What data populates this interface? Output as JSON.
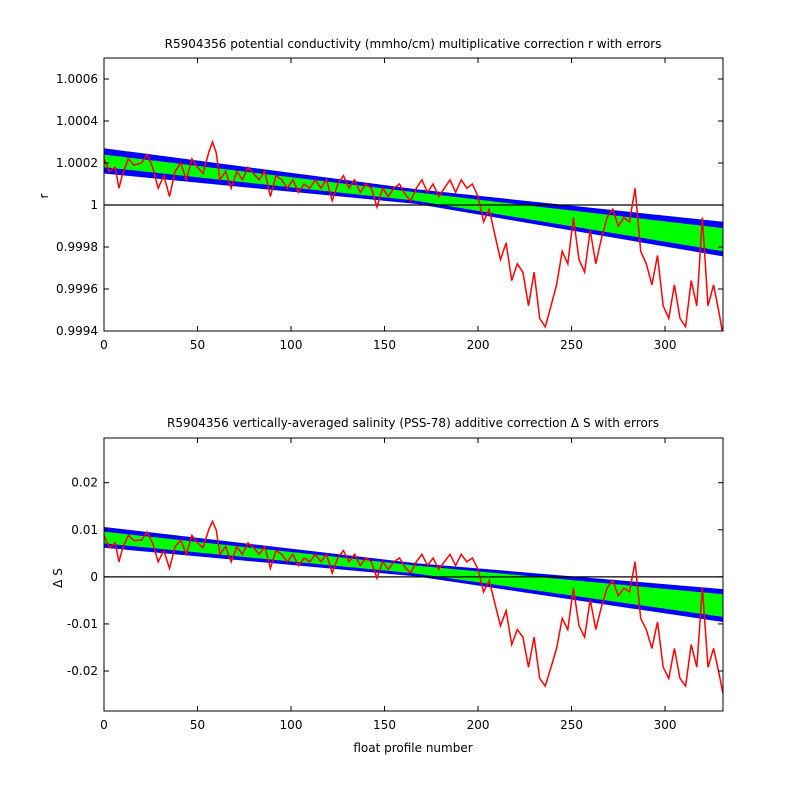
{
  "chart_data": [
    {
      "type": "line",
      "title": "R5904356 potential conductivity (mmho/cm) multiplicative correction r with errors",
      "xlabel": "",
      "ylabel": "r",
      "xlim": [
        0,
        331
      ],
      "ylim": [
        0.9994,
        1.0007
      ],
      "xticks": [
        0,
        50,
        100,
        150,
        200,
        250,
        300
      ],
      "xtick_labels": [
        "0",
        "50",
        "100",
        "150",
        "200",
        "250",
        "300"
      ],
      "yticks": [
        0.9994,
        0.9996,
        0.9998,
        1,
        1.0002,
        1.0004,
        1.0006
      ],
      "ytick_labels": [
        "0.9994",
        "0.9996",
        "0.9998",
        "1",
        "1.0002",
        "1.0004",
        "1.0006"
      ],
      "reference_line": 1,
      "grid": false,
      "colors": {
        "outer_band": "#0000ff",
        "inner_band": "#00ff00",
        "profile_line": "#ff0000",
        "reference_line": "#000000"
      },
      "series": [
        {
          "role": "outer_error_band",
          "x": [
            0,
            167,
            331
          ],
          "upper": [
            1.00027,
            1.000075,
            0.99992
          ],
          "lower": [
            1.00015,
            1.000005,
            0.999755
          ]
        },
        {
          "role": "inner_error_band",
          "x": [
            0,
            167,
            331
          ],
          "upper": [
            1.00024,
            1.00006,
            0.99989
          ],
          "lower": [
            1.00018,
            1.00002,
            0.99978
          ]
        },
        {
          "role": "profile_correction",
          "x": [
            0,
            3,
            6,
            8,
            10,
            13,
            16,
            20,
            23,
            26,
            29,
            32,
            35,
            38,
            41,
            44,
            47,
            50,
            53,
            56,
            58,
            60,
            62,
            65,
            68,
            71,
            74,
            77,
            80,
            83,
            86,
            89,
            92,
            95,
            98,
            101,
            104,
            107,
            110,
            113,
            116,
            119,
            122,
            125,
            128,
            131,
            134,
            137,
            140,
            143,
            146,
            149,
            152,
            155,
            158,
            161,
            164,
            167,
            170,
            173,
            176,
            179,
            182,
            185,
            188,
            191,
            194,
            197,
            200,
            203,
            206,
            209,
            212,
            215,
            218,
            221,
            224,
            227,
            230,
            233,
            236,
            239,
            242,
            245,
            248,
            251,
            254,
            257,
            260,
            263,
            266,
            269,
            272,
            275,
            278,
            281,
            284,
            287,
            290,
            293,
            296,
            299,
            302,
            305,
            308,
            311,
            314,
            317,
            320,
            323,
            326,
            329,
            331
          ],
          "y": [
            1.00022,
            1.00016,
            1.00018,
            1.00008,
            1.00015,
            1.00022,
            1.00019,
            1.0002,
            1.00024,
            1.00018,
            1.00008,
            1.00014,
            1.00004,
            1.00016,
            1.0002,
            1.00012,
            1.00022,
            1.00018,
            1.00015,
            1.00025,
            1.0003,
            1.00025,
            1.00012,
            1.00016,
            1.00008,
            1.00016,
            1.00012,
            1.00018,
            1.00015,
            1.00012,
            1.00016,
            1.00004,
            1.00014,
            1.00012,
            1.00008,
            1.00012,
            1.00006,
            1.0001,
            1.00008,
            1.00012,
            1.00008,
            1.00012,
            1.00002,
            1.0001,
            1.00014,
            1.00008,
            1.00012,
            1.00006,
            1.0001,
            1.00008,
            0.99999,
            1.00008,
            1.00004,
            1.00008,
            1.0001,
            1.00005,
            1.00002,
            1.00008,
            1.00012,
            1.00006,
            1.0001,
            1.00004,
            1.00008,
            1.00012,
            1.00006,
            1.00012,
            1.00008,
            1.0001,
            1.00004,
            0.99992,
            0.99998,
            0.99986,
            0.99974,
            0.99982,
            0.99964,
            0.99972,
            0.99968,
            0.99952,
            0.99968,
            0.99946,
            0.99942,
            0.99952,
            0.99962,
            0.99978,
            0.99972,
            0.99994,
            0.99974,
            0.99968,
            0.99988,
            0.99972,
            0.99984,
            0.99994,
            0.99998,
            0.9999,
            0.99994,
            0.99992,
            1.00008,
            0.99978,
            0.99972,
            0.99962,
            0.99976,
            0.99952,
            0.99946,
            0.99962,
            0.99946,
            0.99942,
            0.99964,
            0.99952,
            0.99994,
            0.99952,
            0.99962,
            0.99948,
            0.99938
          ]
        }
      ]
    },
    {
      "type": "line",
      "title": "R5904356 vertically-averaged salinity (PSS-78) additive correction Δ S with errors",
      "xlabel": "float profile number",
      "ylabel": "Δ S",
      "xlim": [
        0,
        331
      ],
      "ylim": [
        -0.0285,
        0.0295
      ],
      "xticks": [
        0,
        50,
        100,
        150,
        200,
        250,
        300
      ],
      "xtick_labels": [
        "0",
        "50",
        "100",
        "150",
        "200",
        "250",
        "300"
      ],
      "yticks": [
        -0.02,
        -0.01,
        0,
        0.01,
        0.02
      ],
      "ytick_labels": [
        "-0.02",
        "-0.01",
        "0",
        "0.01",
        "0.02"
      ],
      "reference_line": 0,
      "grid": false,
      "colors": {
        "outer_band": "#0000ff",
        "inner_band": "#00ff00",
        "profile_line": "#ff0000",
        "reference_line": "#000000"
      },
      "series": [
        {
          "role": "outer_error_band",
          "x": [
            0,
            167,
            331
          ],
          "upper": [
            0.0106,
            0.0029,
            -0.0026
          ],
          "lower": [
            0.0062,
            0.0001,
            -0.0096
          ]
        },
        {
          "role": "inner_error_band",
          "x": [
            0,
            167,
            331
          ],
          "upper": [
            0.0096,
            0.0024,
            -0.0037
          ],
          "lower": [
            0.0071,
            0.0007,
            -0.0085
          ]
        },
        {
          "role": "profile_correction",
          "x": [
            0,
            3,
            6,
            8,
            10,
            13,
            16,
            20,
            23,
            26,
            29,
            32,
            35,
            38,
            41,
            44,
            47,
            50,
            53,
            56,
            58,
            60,
            62,
            65,
            68,
            71,
            74,
            77,
            80,
            83,
            86,
            89,
            92,
            95,
            98,
            101,
            104,
            107,
            110,
            113,
            116,
            119,
            122,
            125,
            128,
            131,
            134,
            137,
            140,
            143,
            146,
            149,
            152,
            155,
            158,
            161,
            164,
            167,
            170,
            173,
            176,
            179,
            182,
            185,
            188,
            191,
            194,
            197,
            200,
            203,
            206,
            209,
            212,
            215,
            218,
            221,
            224,
            227,
            230,
            233,
            236,
            239,
            242,
            245,
            248,
            251,
            254,
            257,
            260,
            263,
            266,
            269,
            272,
            275,
            278,
            281,
            284,
            287,
            290,
            293,
            296,
            299,
            302,
            305,
            308,
            311,
            314,
            317,
            320,
            323,
            326,
            329,
            331
          ],
          "y": [
            0.0088,
            0.0062,
            0.0072,
            0.0032,
            0.0062,
            0.0088,
            0.0077,
            0.0078,
            0.0095,
            0.0072,
            0.0032,
            0.0056,
            0.0018,
            0.0064,
            0.0078,
            0.0048,
            0.0088,
            0.0072,
            0.0062,
            0.01,
            0.0118,
            0.01,
            0.0048,
            0.0064,
            0.0032,
            0.0064,
            0.0048,
            0.0072,
            0.0062,
            0.0048,
            0.0064,
            0.0018,
            0.0056,
            0.0048,
            0.0032,
            0.0048,
            0.0024,
            0.004,
            0.0032,
            0.0048,
            0.0032,
            0.0048,
            0.0008,
            0.004,
            0.0056,
            0.0032,
            0.0048,
            0.0024,
            0.004,
            0.0032,
            -0.0003,
            0.0032,
            0.0016,
            0.0032,
            0.004,
            0.002,
            0.0008,
            0.0032,
            0.0048,
            0.0024,
            0.004,
            0.0016,
            0.0032,
            0.0048,
            0.0024,
            0.0048,
            0.0032,
            0.004,
            0.0016,
            -0.0032,
            -0.0008,
            -0.0056,
            -0.0104,
            -0.0072,
            -0.0144,
            -0.0112,
            -0.0128,
            -0.0192,
            -0.0128,
            -0.0216,
            -0.0232,
            -0.0192,
            -0.0152,
            -0.0088,
            -0.0112,
            -0.0024,
            -0.0104,
            -0.0128,
            -0.0048,
            -0.0112,
            -0.0064,
            -0.0024,
            -0.0008,
            -0.004,
            -0.0024,
            -0.0032,
            0.0032,
            -0.0088,
            -0.0112,
            -0.0152,
            -0.0096,
            -0.0192,
            -0.0216,
            -0.0152,
            -0.0216,
            -0.0232,
            -0.0144,
            -0.0192,
            -0.0024,
            -0.0192,
            -0.0152,
            -0.0208,
            -0.0248
          ]
        }
      ]
    }
  ]
}
